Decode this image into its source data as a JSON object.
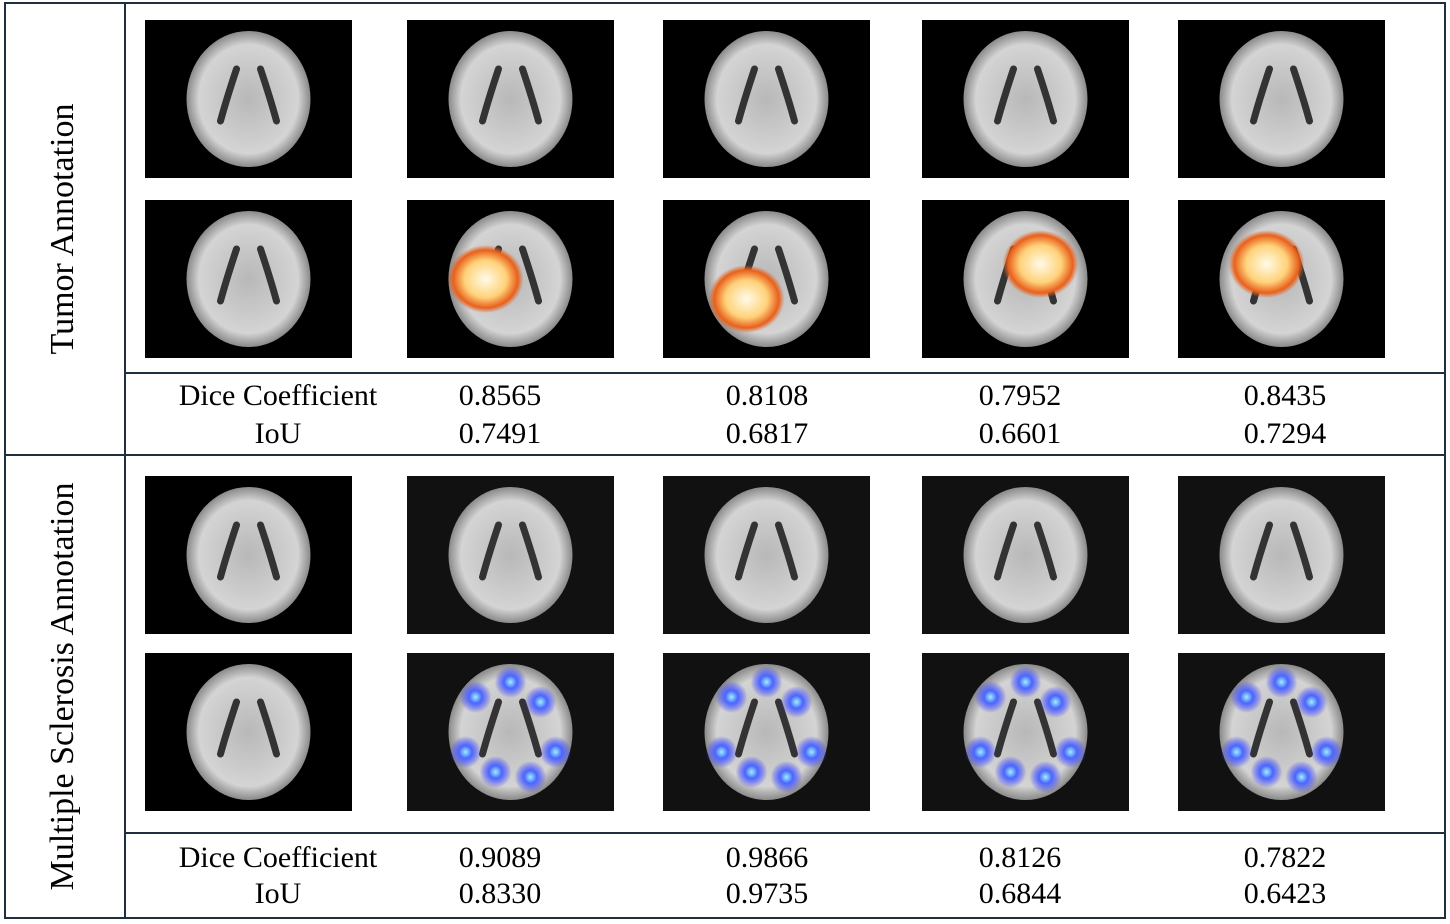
{
  "sections": [
    {
      "label": "Tumor Annotation",
      "metrics": [
        {
          "name": "Dice Coefficient",
          "values": [
            "0.8565",
            "0.8108",
            "0.7952",
            "0.8435"
          ]
        },
        {
          "name": "IoU",
          "values": [
            "0.7491",
            "0.6817",
            "0.6601",
            "0.7294"
          ]
        }
      ]
    },
    {
      "label": "Multiple Sclerosis Annotation",
      "metrics": [
        {
          "name": "Dice Coefficient",
          "values": [
            "0.9089",
            "0.9866",
            "0.8126",
            "0.7822"
          ]
        },
        {
          "name": "IoU",
          "values": [
            "0.8330",
            "0.9735",
            "0.6844",
            "0.6423"
          ]
        }
      ]
    }
  ]
}
